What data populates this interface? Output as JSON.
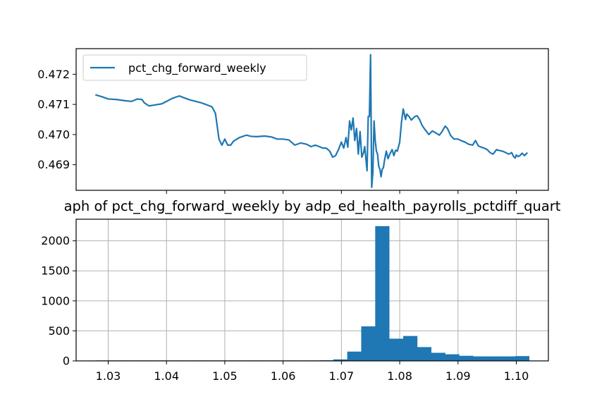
{
  "chart_data": [
    {
      "type": "line",
      "title": "",
      "xlabel": "",
      "ylabel": "",
      "xlim": [
        1.0245,
        1.1055
      ],
      "ylim": [
        0.46815,
        0.47285
      ],
      "x_ticks": [
        1.04,
        1.05,
        1.06,
        1.07,
        1.08,
        1.09,
        1.1
      ],
      "y_ticks": [
        0.469,
        0.47,
        0.471,
        0.472
      ],
      "y_tick_labels": [
        "0.469",
        "0.470",
        "0.471",
        "0.472"
      ],
      "grid": false,
      "legend_position": "upper left",
      "color": "#1f77b4",
      "series": [
        {
          "name": "pct_chg_forward_weekly",
          "points": [
            [
              1.0278,
              0.47132
            ],
            [
              1.029,
              0.47125
            ],
            [
              1.03,
              0.47118
            ],
            [
              1.0315,
              0.47116
            ],
            [
              1.033,
              0.47112
            ],
            [
              1.034,
              0.4711
            ],
            [
              1.035,
              0.47118
            ],
            [
              1.0358,
              0.47116
            ],
            [
              1.0362,
              0.47105
            ],
            [
              1.037,
              0.47095
            ],
            [
              1.038,
              0.47098
            ],
            [
              1.0392,
              0.47102
            ],
            [
              1.04,
              0.4711
            ],
            [
              1.041,
              0.4712
            ],
            [
              1.0422,
              0.47128
            ],
            [
              1.043,
              0.47122
            ],
            [
              1.044,
              0.47115
            ],
            [
              1.045,
              0.4711
            ],
            [
              1.046,
              0.47105
            ],
            [
              1.047,
              0.47098
            ],
            [
              1.0478,
              0.47092
            ],
            [
              1.0484,
              0.4707
            ],
            [
              1.049,
              0.46985
            ],
            [
              1.0495,
              0.46965
            ],
            [
              1.05,
              0.46985
            ],
            [
              1.0505,
              0.46965
            ],
            [
              1.051,
              0.46965
            ],
            [
              1.0515,
              0.46978
            ],
            [
              1.0525,
              0.4699
            ],
            [
              1.0537,
              0.46998
            ],
            [
              1.0545,
              0.46994
            ],
            [
              1.0555,
              0.46993
            ],
            [
              1.0568,
              0.46995
            ],
            [
              1.058,
              0.46992
            ],
            [
              1.059,
              0.46985
            ],
            [
              1.06,
              0.46985
            ],
            [
              1.061,
              0.46982
            ],
            [
              1.062,
              0.46965
            ],
            [
              1.063,
              0.46972
            ],
            [
              1.064,
              0.46968
            ],
            [
              1.0648,
              0.4696
            ],
            [
              1.0655,
              0.46965
            ],
            [
              1.0662,
              0.4696
            ],
            [
              1.0668,
              0.46955
            ],
            [
              1.0674,
              0.46955
            ],
            [
              1.068,
              0.46945
            ],
            [
              1.0685,
              0.46925
            ],
            [
              1.069,
              0.4693
            ],
            [
              1.0695,
              0.4695
            ],
            [
              1.07,
              0.46975
            ],
            [
              1.0704,
              0.46955
            ],
            [
              1.0708,
              0.4699
            ],
            [
              1.0711,
              0.46958
            ],
            [
              1.0714,
              0.47045
            ],
            [
              1.0717,
              0.47015
            ],
            [
              1.072,
              0.47055
            ],
            [
              1.0723,
              0.4698
            ],
            [
              1.0726,
              0.4702
            ],
            [
              1.0729,
              0.46935
            ],
            [
              1.0732,
              0.4701
            ],
            [
              1.0735,
              0.46925
            ],
            [
              1.0738,
              0.4694
            ],
            [
              1.074,
              0.4696
            ],
            [
              1.0742,
              0.4692
            ],
            [
              1.0744,
              0.4688
            ],
            [
              1.0746,
              0.4706
            ],
            [
              1.0748,
              0.4706
            ],
            [
              1.075,
              0.47265
            ],
            [
              1.0752,
              0.46825
            ],
            [
              1.0754,
              0.46875
            ],
            [
              1.0756,
              0.47045
            ],
            [
              1.0758,
              0.4698
            ],
            [
              1.076,
              0.46945
            ],
            [
              1.0762,
              0.46935
            ],
            [
              1.0764,
              0.46895
            ],
            [
              1.0766,
              0.46885
            ],
            [
              1.0768,
              0.4686
            ],
            [
              1.077,
              0.46885
            ],
            [
              1.0772,
              0.4689
            ],
            [
              1.0774,
              0.46915
            ],
            [
              1.0777,
              0.46945
            ],
            [
              1.078,
              0.4692
            ],
            [
              1.0783,
              0.46935
            ],
            [
              1.0787,
              0.4695
            ],
            [
              1.079,
              0.4693
            ],
            [
              1.0793,
              0.46948
            ],
            [
              1.0796,
              0.46945
            ],
            [
              1.08,
              0.46975
            ],
            [
              1.0803,
              0.4704
            ],
            [
              1.0806,
              0.47085
            ],
            [
              1.081,
              0.4705
            ],
            [
              1.0812,
              0.47068
            ],
            [
              1.0816,
              0.4706
            ],
            [
              1.082,
              0.47048
            ],
            [
              1.0826,
              0.4706
            ],
            [
              1.083,
              0.47062
            ],
            [
              1.0834,
              0.4705
            ],
            [
              1.0838,
              0.47032
            ],
            [
              1.0842,
              0.4702
            ],
            [
              1.0846,
              0.4701
            ],
            [
              1.085,
              0.47
            ],
            [
              1.0856,
              0.47012
            ],
            [
              1.0862,
              0.47005
            ],
            [
              1.0868,
              0.46998
            ],
            [
              1.0872,
              0.47008
            ],
            [
              1.0878,
              0.47028
            ],
            [
              1.0882,
              0.4702
            ],
            [
              1.0887,
              0.46998
            ],
            [
              1.0893,
              0.46985
            ],
            [
              1.09,
              0.46985
            ],
            [
              1.0905,
              0.4698
            ],
            [
              1.0912,
              0.46975
            ],
            [
              1.0918,
              0.46968
            ],
            [
              1.0925,
              0.46965
            ],
            [
              1.093,
              0.4698
            ],
            [
              1.0935,
              0.46962
            ],
            [
              1.094,
              0.46958
            ],
            [
              1.0945,
              0.46955
            ],
            [
              1.095,
              0.4695
            ],
            [
              1.0955,
              0.4694
            ],
            [
              1.096,
              0.46935
            ],
            [
              1.0966,
              0.4695
            ],
            [
              1.0971,
              0.46947
            ],
            [
              1.0976,
              0.46945
            ],
            [
              1.0982,
              0.4694
            ],
            [
              1.0987,
              0.46935
            ],
            [
              1.0992,
              0.4694
            ],
            [
              1.0995,
              0.46928
            ],
            [
              1.0998,
              0.46922
            ],
            [
              1.1,
              0.46932
            ],
            [
              1.1003,
              0.46927
            ],
            [
              1.1006,
              0.4693
            ],
            [
              1.101,
              0.46938
            ],
            [
              1.1014,
              0.4693
            ],
            [
              1.1019,
              0.4694
            ]
          ]
        }
      ]
    },
    {
      "type": "bar",
      "title": "aph of pct_chg_forward_weekly by adp_ed_health_payrolls_pctdiff_quart",
      "xlabel": "",
      "ylabel": "",
      "xlim": [
        1.0245,
        1.1055
      ],
      "ylim": [
        0,
        2360
      ],
      "x_ticks": [
        1.03,
        1.04,
        1.05,
        1.06,
        1.07,
        1.08,
        1.09,
        1.1
      ],
      "x_tick_labels": [
        "1.03",
        "1.04",
        "1.05",
        "1.06",
        "1.07",
        "1.08",
        "1.09",
        "1.10"
      ],
      "y_ticks": [
        0,
        500,
        1000,
        1500,
        2000
      ],
      "y_tick_labels": [
        "0",
        "500",
        "1000",
        "1500",
        "2000"
      ],
      "grid": true,
      "color": "#1f77b4",
      "bin_width": 0.0024,
      "bins": [
        [
          1.0278,
          8
        ],
        [
          1.0302,
          8
        ],
        [
          1.0326,
          8
        ],
        [
          1.035,
          8
        ],
        [
          1.0374,
          8
        ],
        [
          1.0398,
          8
        ],
        [
          1.0422,
          8
        ],
        [
          1.0446,
          8
        ],
        [
          1.047,
          8
        ],
        [
          1.0494,
          8
        ],
        [
          1.0518,
          8
        ],
        [
          1.0542,
          8
        ],
        [
          1.0566,
          8
        ],
        [
          1.059,
          8
        ],
        [
          1.0614,
          8
        ],
        [
          1.0638,
          8
        ],
        [
          1.0662,
          10
        ],
        [
          1.0686,
          25
        ],
        [
          1.071,
          155
        ],
        [
          1.0734,
          575
        ],
        [
          1.0758,
          2245
        ],
        [
          1.0782,
          370
        ],
        [
          1.0806,
          415
        ],
        [
          1.083,
          230
        ],
        [
          1.0854,
          135
        ],
        [
          1.0878,
          110
        ],
        [
          1.0902,
          85
        ],
        [
          1.0926,
          75
        ],
        [
          1.095,
          75
        ],
        [
          1.0974,
          75
        ],
        [
          1.0998,
          80
        ]
      ]
    }
  ]
}
